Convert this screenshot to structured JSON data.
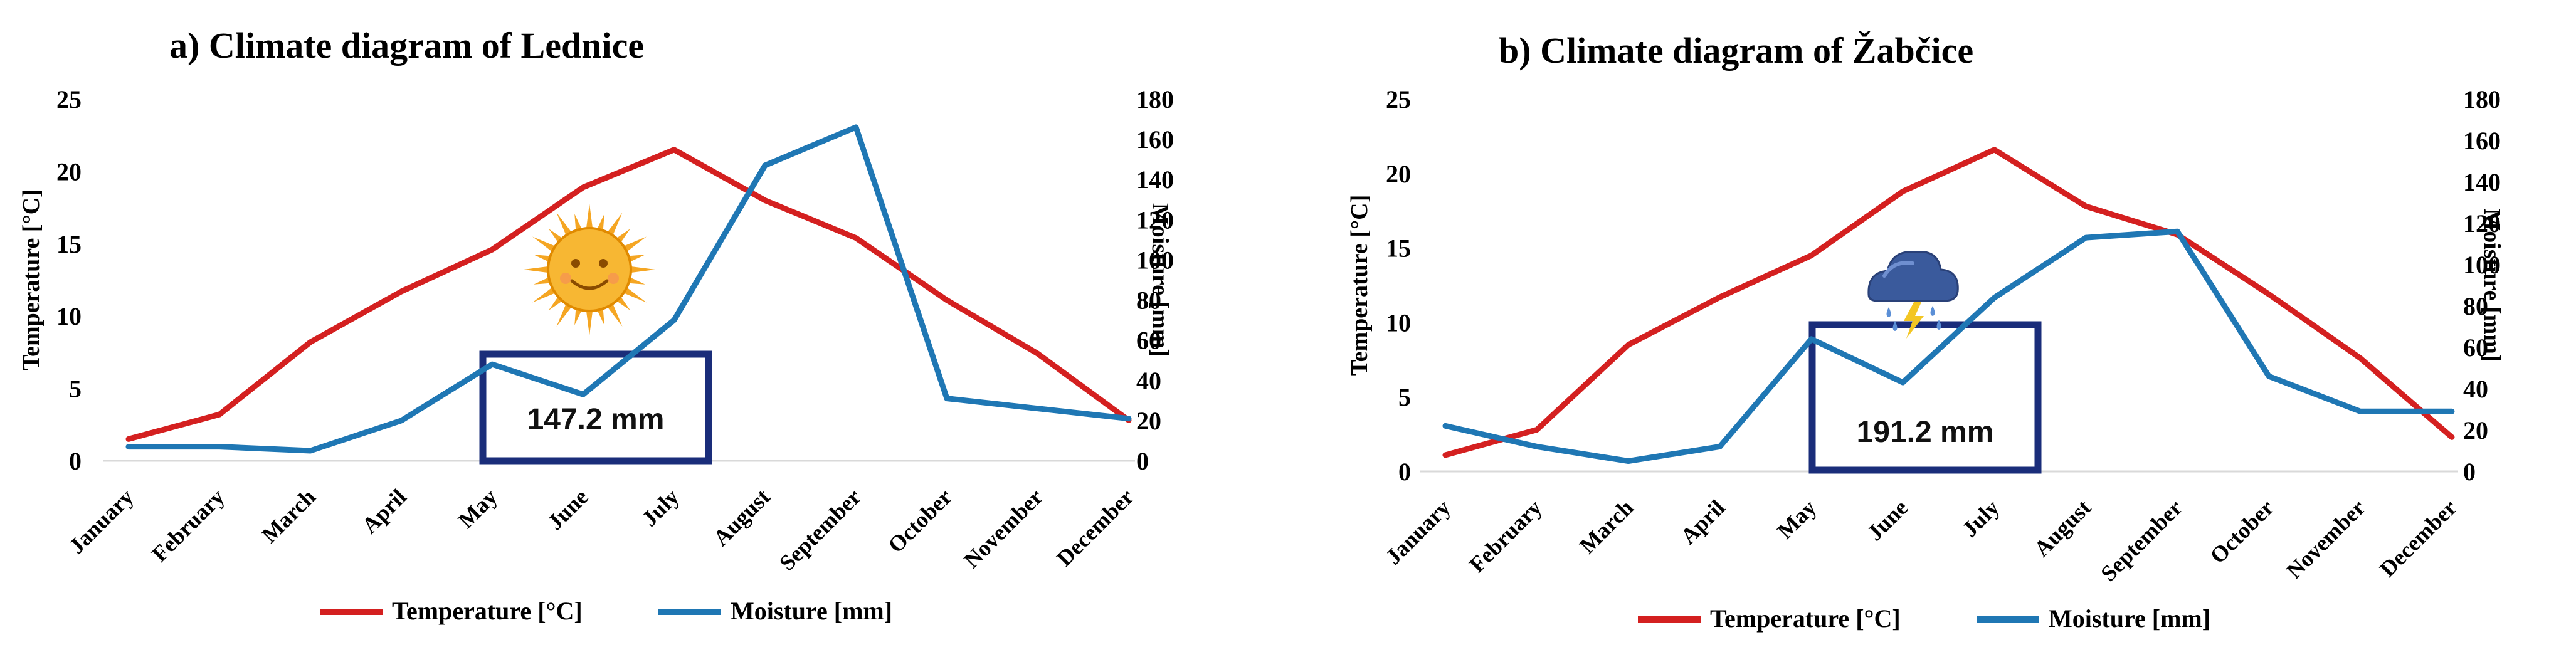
{
  "chart_data": [
    {
      "type": "line",
      "title": "a) Climate diagram of Lednice",
      "categories": [
        "January",
        "February",
        "March",
        "April",
        "May",
        "June",
        "July",
        "August",
        "September",
        "October",
        "November",
        "December"
      ],
      "series": [
        {
          "name": "Temperature [°C]",
          "axis": "left",
          "color": "#d42020",
          "values": [
            1.5,
            3.2,
            8.2,
            11.7,
            14.6,
            18.9,
            21.5,
            18.0,
            15.4,
            11.1,
            7.4,
            2.8
          ]
        },
        {
          "name": "Moisture [mm]",
          "axis": "right",
          "color": "#1f77b4",
          "values": [
            7,
            7,
            5,
            20,
            48,
            33,
            70,
            147,
            166,
            31,
            26,
            21
          ]
        }
      ],
      "ylabel": "Temperature [°C]",
      "ylabel_right": "Moisture [mm]",
      "ylim": [
        0,
        25
      ],
      "ylim_right": [
        0,
        180
      ],
      "yticks": [
        0,
        5,
        10,
        15,
        20,
        25
      ],
      "yticks_right": [
        0,
        20,
        40,
        60,
        80,
        100,
        120,
        140,
        160,
        180
      ],
      "annotation": "147.2 mm",
      "icon": "sun-icon",
      "legend_position": "bottom"
    },
    {
      "type": "line",
      "title": "b) Climate diagram of Žabčice",
      "categories": [
        "January",
        "February",
        "March",
        "April",
        "May",
        "June",
        "July",
        "August",
        "September",
        "October",
        "November",
        "December"
      ],
      "series": [
        {
          "name": "Temperature [°C]",
          "axis": "left",
          "color": "#d42020",
          "values": [
            1.1,
            2.8,
            8.5,
            11.7,
            14.5,
            18.8,
            21.6,
            17.8,
            15.9,
            11.9,
            7.6,
            2.3
          ]
        },
        {
          "name": "Moisture [mm]",
          "axis": "right",
          "color": "#1f77b4",
          "values": [
            22,
            12,
            5,
            12,
            64,
            43,
            84,
            113,
            116,
            46,
            29,
            29
          ]
        }
      ],
      "ylabel": "Temperature [°C]",
      "ylabel_right": "Moisture [mm]",
      "ylim": [
        0,
        25
      ],
      "ylim_right": [
        0,
        180
      ],
      "yticks": [
        0,
        5,
        10,
        15,
        20,
        25
      ],
      "yticks_right": [
        0,
        20,
        40,
        60,
        80,
        100,
        120,
        140,
        160,
        180
      ],
      "annotation": "191.2 mm",
      "icon": "storm-cloud-icon",
      "legend_position": "bottom"
    }
  ],
  "colors": {
    "temperature": "#d42020",
    "moisture": "#1f77b4",
    "annotation_box": "#1a2d7a"
  }
}
